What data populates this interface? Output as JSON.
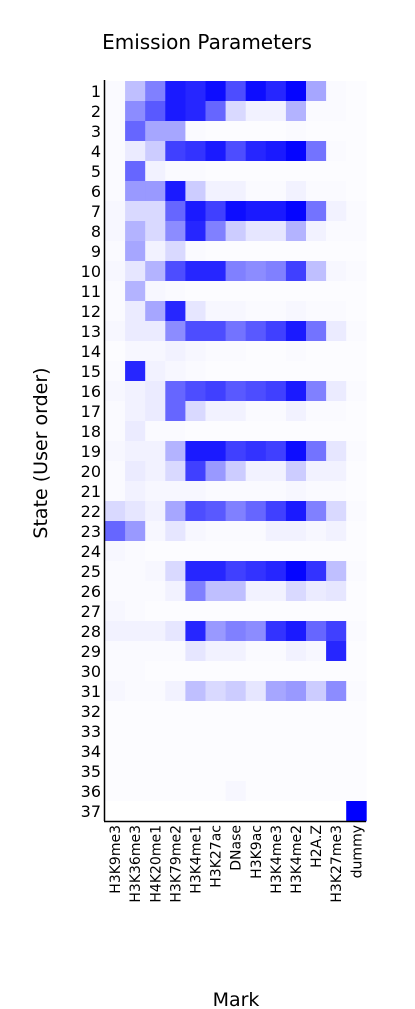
{
  "chart_data": {
    "type": "heatmap",
    "title": "Emission Parameters",
    "xlabel": "Mark",
    "ylabel": "State (User order)",
    "columns": [
      "H3K9me3",
      "H3K36me3",
      "H4K20me1",
      "H3K79me2",
      "H3K4me1",
      "H3K27ac",
      "DNase",
      "H3K9ac",
      "H3K4me3",
      "H3K4me2",
      "H2A.Z",
      "H3K27me3",
      "dummy"
    ],
    "rows": [
      "1",
      "2",
      "3",
      "4",
      "5",
      "6",
      "7",
      "8",
      "9",
      "10",
      "11",
      "12",
      "13",
      "14",
      "15",
      "16",
      "17",
      "18",
      "19",
      "20",
      "21",
      "22",
      "23",
      "24",
      "25",
      "26",
      "27",
      "28",
      "29",
      "30",
      "31",
      "32",
      "33",
      "34",
      "35",
      "36",
      "37"
    ],
    "value_range": [
      0,
      1
    ],
    "color_low": "#ffffff",
    "color_high": "#0000ff",
    "grid": false,
    "values": [
      [
        0.02,
        0.25,
        0.5,
        0.9,
        0.85,
        0.95,
        0.7,
        0.95,
        0.85,
        0.98,
        0.35,
        0.02,
        0.01
      ],
      [
        0.02,
        0.45,
        0.65,
        0.9,
        0.85,
        0.6,
        0.15,
        0.05,
        0.05,
        0.3,
        0.02,
        0.02,
        0.01
      ],
      [
        0.02,
        0.6,
        0.35,
        0.35,
        0.02,
        0.01,
        0.01,
        0.01,
        0.01,
        0.02,
        0.01,
        0.01,
        0.01
      ],
      [
        0.02,
        0.08,
        0.2,
        0.75,
        0.8,
        0.9,
        0.7,
        0.85,
        0.9,
        0.98,
        0.55,
        0.02,
        0.01
      ],
      [
        0.02,
        0.6,
        0.05,
        0.02,
        0.02,
        0.01,
        0.01,
        0.01,
        0.01,
        0.01,
        0.01,
        0.01,
        0.01
      ],
      [
        0.02,
        0.4,
        0.4,
        0.9,
        0.2,
        0.05,
        0.05,
        0.02,
        0.02,
        0.05,
        0.02,
        0.02,
        0.01
      ],
      [
        0.03,
        0.15,
        0.15,
        0.6,
        0.9,
        0.75,
        0.95,
        0.9,
        0.9,
        0.98,
        0.55,
        0.05,
        0.02
      ],
      [
        0.03,
        0.3,
        0.15,
        0.45,
        0.85,
        0.5,
        0.2,
        0.1,
        0.1,
        0.3,
        0.05,
        0.02,
        0.02
      ],
      [
        0.02,
        0.35,
        0.05,
        0.15,
        0.02,
        0.01,
        0.01,
        0.01,
        0.01,
        0.01,
        0.01,
        0.01,
        0.01
      ],
      [
        0.03,
        0.1,
        0.3,
        0.7,
        0.85,
        0.85,
        0.5,
        0.45,
        0.5,
        0.75,
        0.25,
        0.03,
        0.02
      ],
      [
        0.02,
        0.3,
        0.03,
        0.02,
        0.01,
        0.01,
        0.01,
        0.01,
        0.01,
        0.01,
        0.01,
        0.01,
        0.01
      ],
      [
        0.02,
        0.08,
        0.35,
        0.85,
        0.1,
        0.03,
        0.03,
        0.02,
        0.02,
        0.03,
        0.02,
        0.02,
        0.01
      ],
      [
        0.03,
        0.08,
        0.08,
        0.45,
        0.7,
        0.7,
        0.55,
        0.65,
        0.75,
        0.9,
        0.55,
        0.08,
        0.02
      ],
      [
        0.01,
        0.03,
        0.03,
        0.05,
        0.03,
        0.02,
        0.02,
        0.01,
        0.01,
        0.02,
        0.01,
        0.01,
        0.01
      ],
      [
        0.02,
        0.85,
        0.05,
        0.03,
        0.02,
        0.01,
        0.01,
        0.01,
        0.01,
        0.01,
        0.01,
        0.01,
        0.01
      ],
      [
        0.03,
        0.05,
        0.08,
        0.6,
        0.7,
        0.75,
        0.65,
        0.7,
        0.75,
        0.9,
        0.5,
        0.08,
        0.02
      ],
      [
        0.02,
        0.05,
        0.08,
        0.6,
        0.15,
        0.05,
        0.05,
        0.02,
        0.02,
        0.05,
        0.02,
        0.02,
        0.01
      ],
      [
        0.02,
        0.08,
        0.02,
        0.02,
        0.01,
        0.01,
        0.01,
        0.01,
        0.01,
        0.01,
        0.01,
        0.01,
        0.01
      ],
      [
        0.03,
        0.05,
        0.05,
        0.3,
        0.9,
        0.9,
        0.75,
        0.8,
        0.75,
        0.95,
        0.55,
        0.1,
        0.02
      ],
      [
        0.02,
        0.08,
        0.05,
        0.15,
        0.75,
        0.4,
        0.2,
        0.05,
        0.05,
        0.2,
        0.05,
        0.05,
        0.01
      ],
      [
        0.02,
        0.05,
        0.03,
        0.03,
        0.03,
        0.02,
        0.02,
        0.02,
        0.02,
        0.03,
        0.02,
        0.02,
        0.01
      ],
      [
        0.15,
        0.1,
        0.05,
        0.35,
        0.7,
        0.65,
        0.5,
        0.6,
        0.75,
        0.9,
        0.5,
        0.15,
        0.02
      ],
      [
        0.6,
        0.4,
        0.03,
        0.1,
        0.03,
        0.02,
        0.02,
        0.02,
        0.05,
        0.05,
        0.03,
        0.05,
        0.01
      ],
      [
        0.03,
        0.02,
        0.01,
        0.01,
        0.01,
        0.01,
        0.01,
        0.01,
        0.01,
        0.01,
        0.01,
        0.01,
        0.01
      ],
      [
        0.02,
        0.02,
        0.03,
        0.15,
        0.85,
        0.85,
        0.75,
        0.8,
        0.85,
        0.98,
        0.8,
        0.25,
        0.02
      ],
      [
        0.02,
        0.02,
        0.02,
        0.05,
        0.5,
        0.25,
        0.25,
        0.05,
        0.05,
        0.15,
        0.08,
        0.1,
        0.01
      ],
      [
        0.03,
        0.02,
        0.01,
        0.01,
        0.01,
        0.01,
        0.01,
        0.01,
        0.01,
        0.01,
        0.01,
        0.01,
        0.01
      ],
      [
        0.05,
        0.05,
        0.05,
        0.1,
        0.85,
        0.4,
        0.5,
        0.45,
        0.8,
        0.9,
        0.6,
        0.75,
        0.02
      ],
      [
        0.02,
        0.02,
        0.02,
        0.02,
        0.1,
        0.05,
        0.05,
        0.02,
        0.02,
        0.05,
        0.03,
        0.85,
        0.01
      ],
      [
        0.02,
        0.02,
        0.01,
        0.01,
        0.01,
        0.01,
        0.01,
        0.01,
        0.01,
        0.01,
        0.01,
        0.01,
        0.01
      ],
      [
        0.03,
        0.02,
        0.02,
        0.05,
        0.25,
        0.15,
        0.2,
        0.1,
        0.35,
        0.4,
        0.2,
        0.45,
        0.02
      ],
      [
        0.01,
        0.01,
        0.01,
        0.01,
        0.01,
        0.01,
        0.01,
        0.01,
        0.01,
        0.01,
        0.01,
        0.01,
        0.01
      ],
      [
        0.01,
        0.01,
        0.01,
        0.01,
        0.01,
        0.01,
        0.01,
        0.01,
        0.01,
        0.01,
        0.01,
        0.01,
        0.01
      ],
      [
        0.01,
        0.01,
        0.01,
        0.01,
        0.01,
        0.01,
        0.01,
        0.01,
        0.01,
        0.01,
        0.01,
        0.01,
        0.01
      ],
      [
        0.01,
        0.01,
        0.01,
        0.01,
        0.01,
        0.01,
        0.01,
        0.01,
        0.01,
        0.01,
        0.01,
        0.01,
        0.01
      ],
      [
        0.01,
        0.01,
        0.01,
        0.01,
        0.01,
        0.01,
        0.03,
        0.01,
        0.01,
        0.01,
        0.01,
        0.01,
        0.01
      ],
      [
        0.0,
        0.0,
        0.0,
        0.0,
        0.0,
        0.0,
        0.0,
        0.0,
        0.0,
        0.0,
        0.0,
        0.0,
        1.0
      ]
    ]
  }
}
